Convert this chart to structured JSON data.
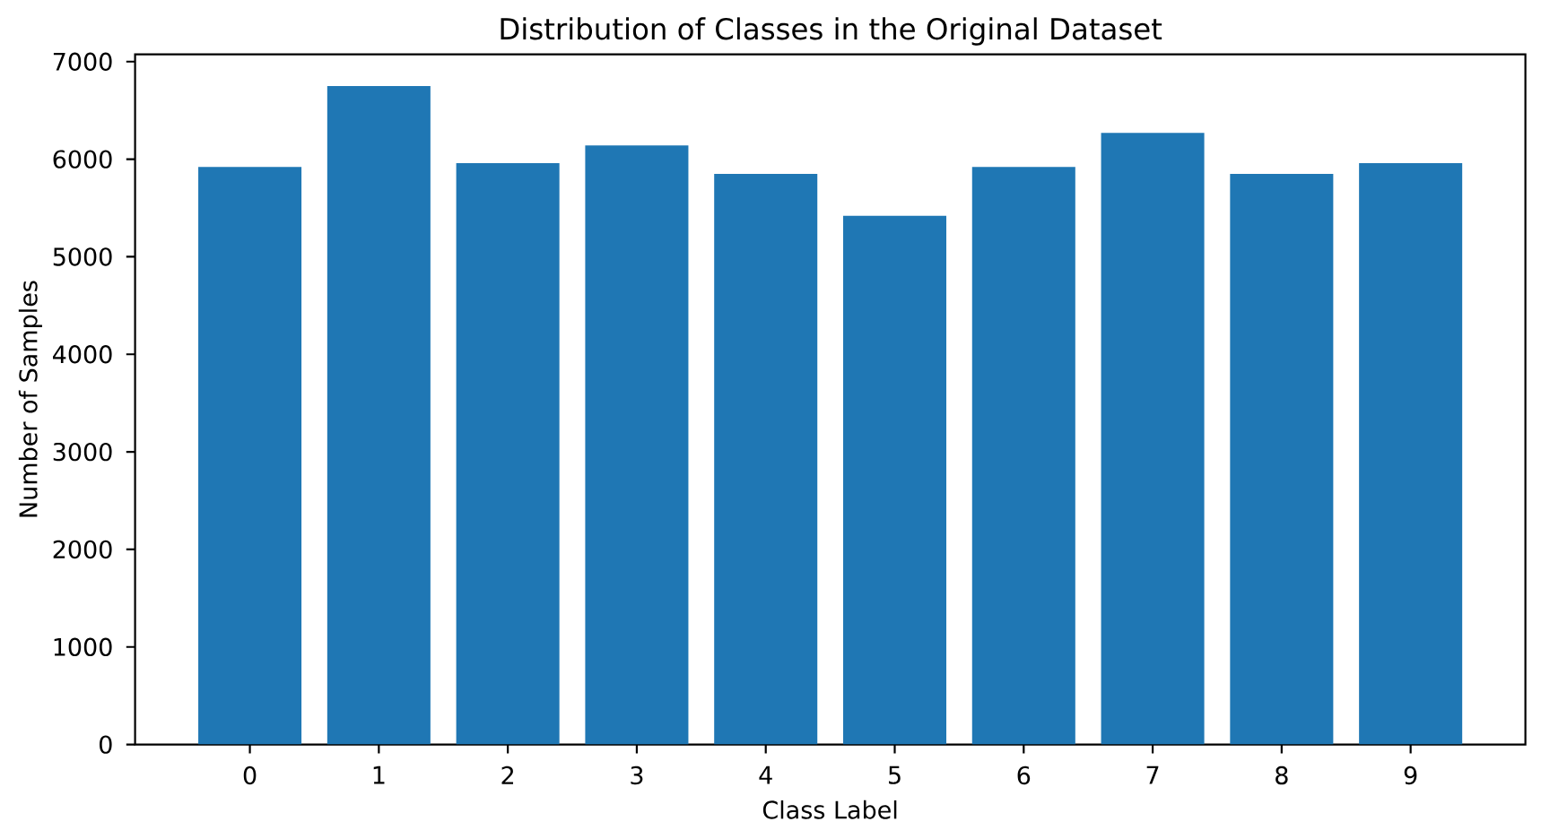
{
  "chart_data": {
    "type": "bar",
    "title": "Distribution of Classes in the Original Dataset",
    "xlabel": "Class Label",
    "ylabel": "Number of Samples",
    "categories": [
      "0",
      "1",
      "2",
      "3",
      "4",
      "5",
      "6",
      "7",
      "8",
      "9"
    ],
    "values": [
      5920,
      6750,
      5960,
      6140,
      5850,
      5420,
      5920,
      6270,
      5850,
      5960
    ],
    "color": "#1f77b4",
    "ylim": [
      0,
      7075
    ],
    "yticks": [
      0,
      1000,
      2000,
      3000,
      4000,
      5000,
      6000,
      7000
    ]
  }
}
